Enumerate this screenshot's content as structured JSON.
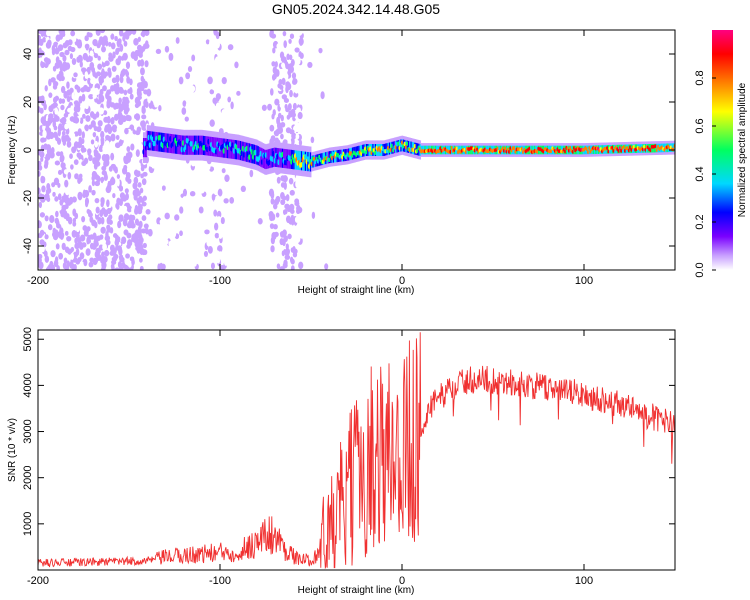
{
  "title": "GN05.2024.342.14.48.G05",
  "chart_data": [
    {
      "type": "heatmap",
      "xlabel": "Height of straight line (km)",
      "ylabel": "Frequency (Hz)",
      "xlim": [
        -200,
        150
      ],
      "ylim": [
        -50,
        50
      ],
      "xticks": [
        -200,
        -100,
        0,
        100
      ],
      "yticks": [
        -40,
        -20,
        0,
        20,
        40
      ],
      "colorbar": {
        "label": "Normalized spectral amplitude",
        "range": [
          0,
          1
        ],
        "ticks": [
          0.0,
          0.2,
          0.4,
          0.6,
          0.8
        ],
        "colors": [
          "#ffffff",
          "#c8a0ff",
          "#7a00ff",
          "#0000ff",
          "#00d8ff",
          "#00ff60",
          "#ffff00",
          "#ff8000",
          "#ff0000",
          "#ff0080"
        ]
      },
      "ridge": [
        {
          "x": -140,
          "y": 4
        },
        {
          "x": -130,
          "y": 3
        },
        {
          "x": -120,
          "y": 2
        },
        {
          "x": -110,
          "y": 2
        },
        {
          "x": -100,
          "y": 1
        },
        {
          "x": -90,
          "y": 0
        },
        {
          "x": -80,
          "y": -2
        },
        {
          "x": -75,
          "y": -4
        },
        {
          "x": -70,
          "y": -3
        },
        {
          "x": -60,
          "y": -4
        },
        {
          "x": -50,
          "y": -5
        },
        {
          "x": -40,
          "y": -3
        },
        {
          "x": -30,
          "y": -2
        },
        {
          "x": -20,
          "y": 0
        },
        {
          "x": -10,
          "y": 0
        },
        {
          "x": 0,
          "y": 2
        },
        {
          "x": 10,
          "y": 0
        },
        {
          "x": 50,
          "y": 0
        },
        {
          "x": 100,
          "y": 0
        },
        {
          "x": 150,
          "y": 1
        }
      ]
    },
    {
      "type": "line",
      "xlabel": "Height of straight line (km)",
      "ylabel": "SNR (10 * v/v)",
      "xlim": [
        -200,
        150
      ],
      "ylim": [
        0,
        5200
      ],
      "xticks": [
        -200,
        -100,
        0,
        100
      ],
      "yticks": [
        1000,
        2000,
        3000,
        4000,
        5000
      ],
      "color": "#f03030",
      "envelope": [
        {
          "x": -200,
          "y": 150
        },
        {
          "x": -160,
          "y": 180
        },
        {
          "x": -140,
          "y": 200
        },
        {
          "x": -130,
          "y": 280
        },
        {
          "x": -110,
          "y": 350
        },
        {
          "x": -90,
          "y": 400
        },
        {
          "x": -80,
          "y": 600
        },
        {
          "x": -72,
          "y": 800
        },
        {
          "x": -65,
          "y": 500
        },
        {
          "x": -58,
          "y": 250
        },
        {
          "x": -50,
          "y": 200
        },
        {
          "x": -40,
          "y": 700
        },
        {
          "x": -30,
          "y": 1600
        },
        {
          "x": -20,
          "y": 2300
        },
        {
          "x": -12,
          "y": 2600
        },
        {
          "x": -5,
          "y": 2500
        },
        {
          "x": 0,
          "y": 2600
        },
        {
          "x": 8,
          "y": 2900
        },
        {
          "x": 15,
          "y": 3500
        },
        {
          "x": 25,
          "y": 3900
        },
        {
          "x": 35,
          "y": 4100
        },
        {
          "x": 45,
          "y": 4150
        },
        {
          "x": 60,
          "y": 4050
        },
        {
          "x": 80,
          "y": 3950
        },
        {
          "x": 100,
          "y": 3800
        },
        {
          "x": 120,
          "y": 3600
        },
        {
          "x": 135,
          "y": 3350
        },
        {
          "x": 150,
          "y": 3150
        }
      ]
    }
  ]
}
